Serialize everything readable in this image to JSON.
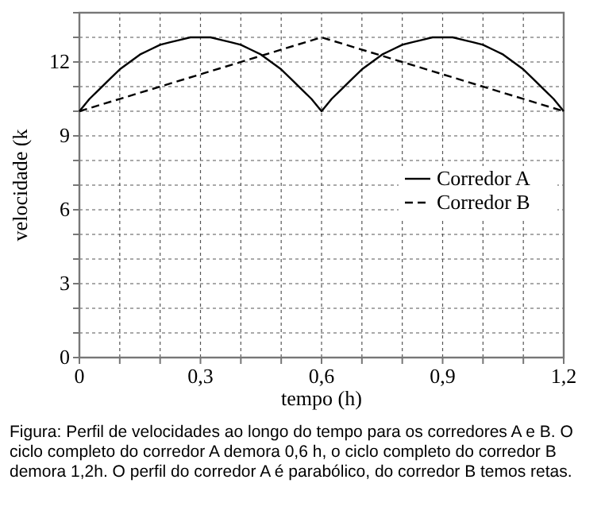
{
  "chart_data": {
    "type": "line",
    "xlabel": "tempo (h)",
    "ylabel": "velocidade (k",
    "xlim": [
      0,
      1.2
    ],
    "ylim": [
      0,
      14
    ],
    "xticks": [
      0,
      {
        "value": 0.1,
        "label": null
      },
      {
        "value": 0.2,
        "label": null
      },
      {
        "value": 0.3,
        "label": "0,3"
      },
      {
        "value": 0.4,
        "label": null
      },
      {
        "value": 0.5,
        "label": null
      },
      {
        "value": 0.6,
        "label": "0,6"
      },
      {
        "value": 0.7,
        "label": null
      },
      {
        "value": 0.8,
        "label": null
      },
      {
        "value": 0.9,
        "label": "0,9"
      },
      {
        "value": 1,
        "label": null
      },
      {
        "value": 1.1,
        "label": null
      },
      {
        "value": 1.2,
        "label": "1,2"
      }
    ],
    "yticks": [
      0,
      {
        "value": 1,
        "label": null
      },
      {
        "value": 2,
        "label": null
      },
      3,
      {
        "value": 4,
        "label": null
      },
      {
        "value": 5,
        "label": null
      },
      6,
      {
        "value": 7,
        "label": null
      },
      {
        "value": 8,
        "label": null
      },
      9,
      {
        "value": 10,
        "label": null
      },
      {
        "value": 11,
        "label": null
      },
      12,
      {
        "value": 13,
        "label": null
      },
      {
        "value": 14,
        "label": null
      }
    ],
    "grid": true,
    "legend": "right",
    "marker": "none",
    "series": [
      {
        "name": "Corredor A",
        "color": "#000000",
        "line_style": "solid",
        "x": [
          0,
          0.025,
          0.05,
          0.075,
          0.1,
          0.125,
          0.15,
          0.175,
          0.2,
          0.225,
          0.25,
          0.275,
          0.3,
          0.325,
          0.35,
          0.375,
          0.4,
          0.425,
          0.45,
          0.475,
          0.5,
          0.525,
          0.55,
          0.575,
          0.6,
          0.625,
          0.65,
          0.675,
          0.7,
          0.725,
          0.75,
          0.775,
          0.8,
          0.825,
          0.85,
          0.875,
          0.9,
          0.925,
          0.95,
          0.975,
          1,
          1.025,
          1.05,
          1.075,
          1.1,
          1.125,
          1.15,
          1.175,
          1.2
        ],
        "values": [
          10,
          10.5,
          10.9,
          11.3,
          11.7,
          12,
          12.3,
          12.5,
          12.7,
          12.8,
          12.9,
          13,
          13,
          13,
          12.9,
          12.8,
          12.7,
          12.5,
          12.3,
          12,
          11.7,
          11.3,
          10.9,
          10.5,
          10,
          10.5,
          10.9,
          11.3,
          11.7,
          12,
          12.3,
          12.5,
          12.7,
          12.8,
          12.9,
          13,
          13,
          13,
          12.9,
          12.8,
          12.7,
          12.5,
          12.3,
          12,
          11.7,
          11.3,
          10.9,
          10.5,
          10
        ]
      },
      {
        "name": "Corredor B",
        "color": "#000000",
        "line_style": "dashed",
        "x": [
          0,
          0.6,
          1.2
        ],
        "values": [
          10,
          13,
          10
        ]
      }
    ],
    "annotations": [
      "Figura: Perfil de velocidades ao longo do tempo para os corredores A e B. O ciclo completo do corredor A demora 0,6 h, o ciclo completo do corredor B demora 1,2h. O perfil do corredor A é parabólico, do corredor B temos retas."
    ]
  }
}
